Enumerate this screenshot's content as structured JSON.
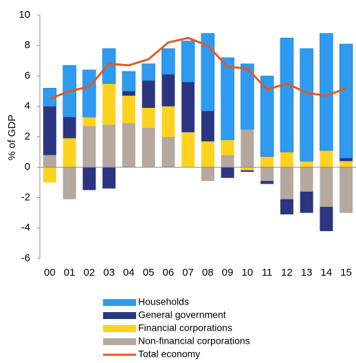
{
  "chart_data": {
    "type": "bar",
    "stacked": true,
    "y_label": "% of GDP",
    "categories": [
      "00",
      "01",
      "02",
      "03",
      "04",
      "05",
      "06",
      "07",
      "08",
      "09",
      "10",
      "11",
      "12",
      "13",
      "14",
      "15"
    ],
    "ylim": [
      -6,
      10
    ],
    "yticks": [
      -6,
      -4,
      -2,
      0,
      2,
      4,
      6,
      8,
      10
    ],
    "series": [
      {
        "name": "Households",
        "color": "#2e9bf0",
        "values": [
          1.2,
          3.4,
          3.1,
          2.3,
          1.3,
          1.1,
          1.7,
          2.7,
          5.1,
          5.4,
          4.3,
          5.3,
          7.5,
          7.4,
          7.7,
          7.5
        ]
      },
      {
        "name": "General government",
        "color": "#2b3580",
        "values": [
          3.2,
          1.4,
          -1.5,
          -1.4,
          0.3,
          1.8,
          2.1,
          3.3,
          2.0,
          -0.7,
          -0.1,
          -0.2,
          -1.0,
          -1.4,
          -1.6,
          0.2
        ]
      },
      {
        "name": "Financial corporations",
        "color": "#ffd21f",
        "values": [
          -1.0,
          1.9,
          0.6,
          2.7,
          1.8,
          1.3,
          2.0,
          2.3,
          1.7,
          1.0,
          -0.2,
          0.7,
          1.0,
          0.4,
          1.1,
          0.4
        ]
      },
      {
        "name": "Non-financial corporations",
        "color": "#b5a89e",
        "values": [
          0.8,
          -2.1,
          2.7,
          2.8,
          2.9,
          2.6,
          2.0,
          0.0,
          -0.9,
          0.8,
          2.5,
          -0.9,
          -2.1,
          -1.6,
          -2.6,
          -3.0
        ]
      },
      {
        "name": "Total economy",
        "type": "line",
        "color": "#e8571e",
        "values": [
          4.5,
          5.0,
          5.3,
          6.8,
          6.7,
          7.1,
          8.2,
          8.5,
          8.0,
          6.6,
          6.5,
          5.1,
          5.5,
          4.9,
          4.7,
          5.2
        ]
      }
    ]
  }
}
